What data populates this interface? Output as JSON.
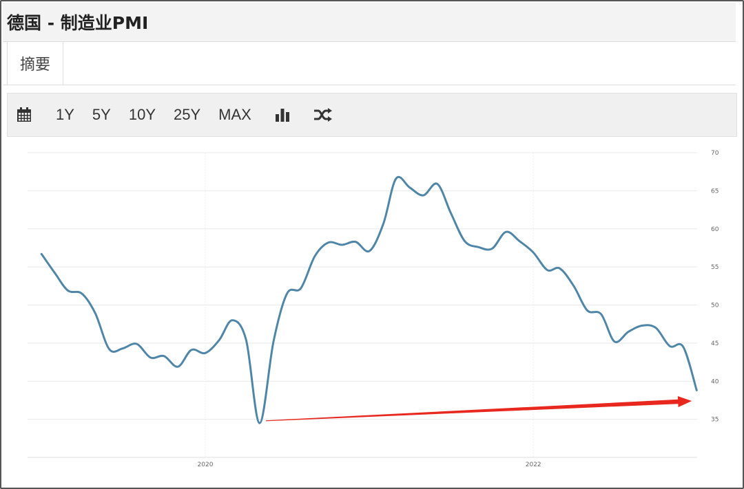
{
  "header": {
    "title": "德国 - 制造业PMI"
  },
  "tabs": [
    {
      "label": "摘要"
    }
  ],
  "toolbar": {
    "calendar_icon": "calendar-icon",
    "buttons": [
      "1Y",
      "5Y",
      "10Y",
      "25Y",
      "MAX"
    ],
    "chart_type_icon": "bar-chart-icon",
    "compare_icon": "shuffle-icon"
  },
  "colors": {
    "line": "#4f86a8",
    "arrow": "#e8281e",
    "grid": "#e8e8e8"
  },
  "chart_data": {
    "type": "line",
    "title": "",
    "xlabel": "",
    "ylabel": "",
    "ylim": [
      30,
      70
    ],
    "yticks": [
      35,
      40,
      45,
      50,
      55,
      60,
      65,
      70
    ],
    "ytick_labels": [
      "35",
      "40",
      "45",
      "50",
      "55",
      "60",
      "65",
      "70"
    ],
    "xlim": [
      "2018-12-01",
      "2023-01-01"
    ],
    "xticks": [
      "2020-01-01",
      "2022-01-01"
    ],
    "xtick_labels": [
      "2020",
      "2022"
    ],
    "grid": true,
    "y_axis_side": "right",
    "series": [
      {
        "x": [
          "2019-01",
          "2019-02",
          "2019-03",
          "2019-04",
          "2019-05",
          "2019-06",
          "2019-07",
          "2019-08",
          "2019-09",
          "2019-10",
          "2019-11",
          "2019-12",
          "2020-01",
          "2020-02",
          "2020-03",
          "2020-04",
          "2020-05",
          "2020-06",
          "2020-07",
          "2020-08",
          "2020-09",
          "2020-10",
          "2020-11",
          "2020-12",
          "2021-01",
          "2021-02",
          "2021-03",
          "2021-04",
          "2021-05",
          "2021-06",
          "2021-07",
          "2021-08",
          "2021-09",
          "2021-10",
          "2021-11",
          "2021-12",
          "2022-01",
          "2022-02",
          "2022-03",
          "2022-04",
          "2022-05",
          "2022-06",
          "2022-07",
          "2022-08",
          "2022-09",
          "2022-10",
          "2022-11",
          "2022-12"
        ],
        "values": [
          56.7,
          54.1,
          51.9,
          51.5,
          48.9,
          44.2,
          44.3,
          44.9,
          43.1,
          43.3,
          41.9,
          44.1,
          43.7,
          45.4,
          48.0,
          45.4,
          34.5,
          45.2,
          51.5,
          52.2,
          56.4,
          58.2,
          57.9,
          58.3,
          57.1,
          60.7,
          66.6,
          65.4,
          64.4,
          65.9,
          62.1,
          58.4,
          57.6,
          57.4,
          59.6,
          58.4,
          56.9,
          54.6,
          54.8,
          52.5,
          49.3,
          48.8,
          45.2,
          46.5,
          47.3,
          47.0,
          44.6,
          44.5
        ],
        "end_point": {
          "x": "2022-12-31",
          "y": 38.8
        }
      }
    ],
    "annotations": [
      {
        "type": "arrow",
        "from": {
          "x": "2020-05-15",
          "y": 34.8
        },
        "to": {
          "x": "2022-12-20",
          "y": 37.4
        }
      }
    ]
  }
}
